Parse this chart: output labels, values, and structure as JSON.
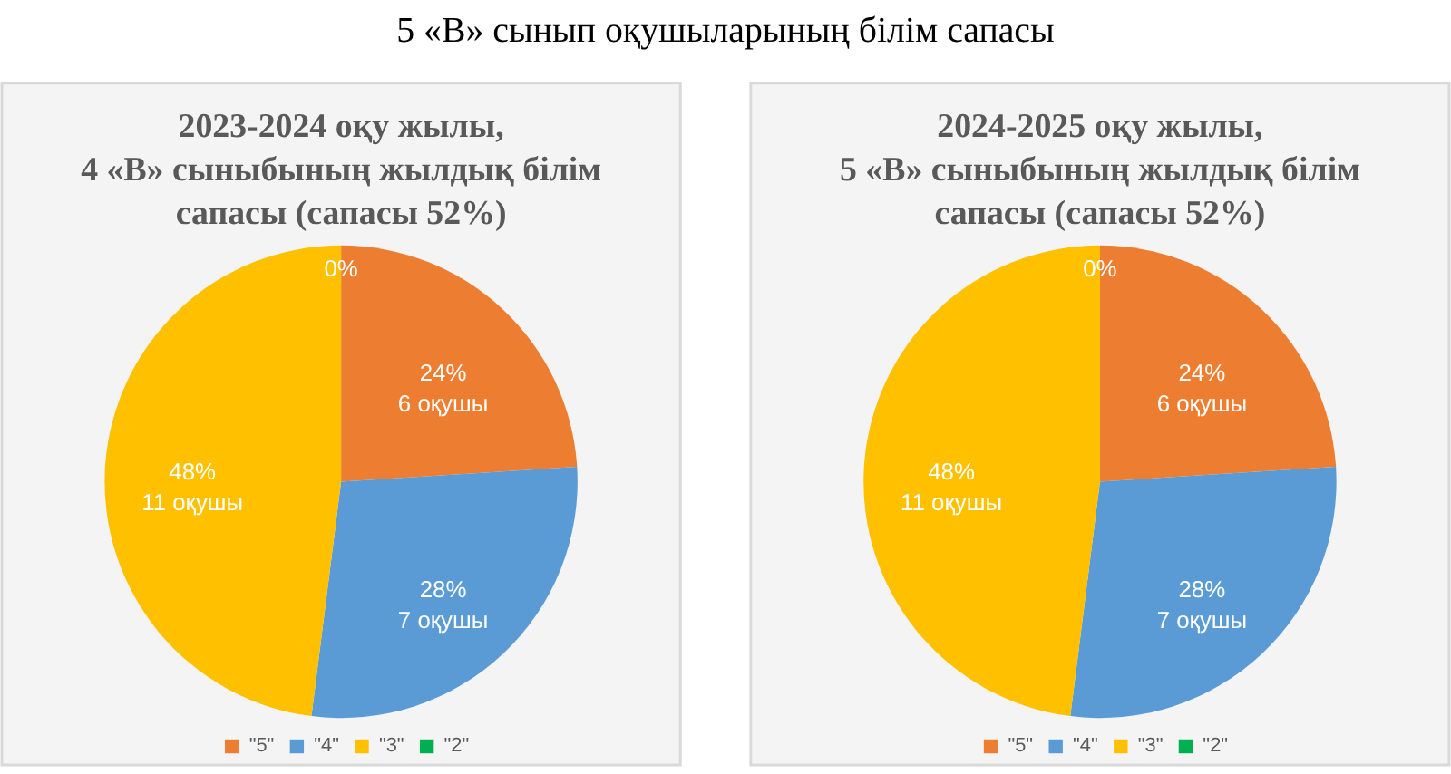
{
  "chart_data": [
    {
      "type": "other",
      "title": "5 «В» сынып оқушыларының білім сапасы"
    },
    {
      "type": "pie",
      "title": "2023-2024 оқу жылы,\n4 «В» сыныбының жылдық білім\nсапасы (сапасы 52%)",
      "categories": [
        "\"5\"",
        "\"4\"",
        "\"3\"",
        "\"2\""
      ],
      "values": [
        24,
        28,
        48,
        0
      ],
      "colors": [
        "#ed7d31",
        "#5b9bd5",
        "#ffc000",
        "#00b050"
      ],
      "value_labels": [
        "24%\n6 оқушы",
        "28%\n7 оқушы",
        "48%\n11 оқушы",
        "0%"
      ],
      "legend": "bottom"
    },
    {
      "type": "pie",
      "title": "2024-2025 оқу жылы,\n5 «В» сыныбының жылдық білім\nсапасы (сапасы 52%)",
      "categories": [
        "\"5\"",
        "\"4\"",
        "\"3\"",
        "\"2\""
      ],
      "values": [
        24,
        28,
        48,
        0
      ],
      "colors": [
        "#ed7d31",
        "#5b9bd5",
        "#ffc000",
        "#00b050"
      ],
      "value_labels": [
        "24%\n6 оқушы",
        "28%\n7 оқушы",
        "48%\n11 оқушы",
        "0%"
      ],
      "legend": "bottom"
    }
  ]
}
